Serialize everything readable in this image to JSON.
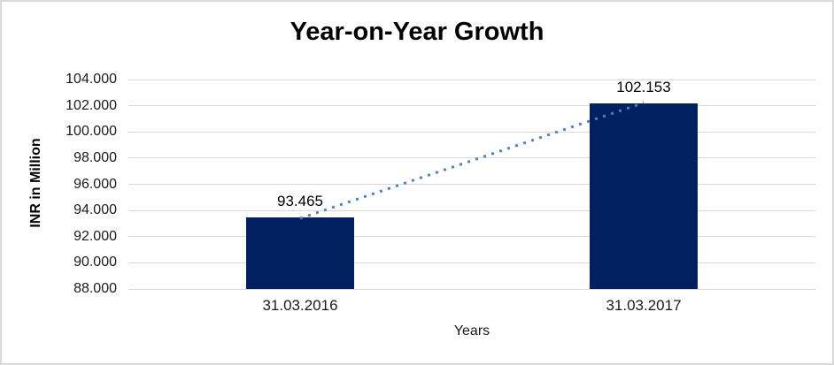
{
  "chart_data": {
    "type": "bar",
    "title": "Year-on-Year Growth",
    "xlabel": "Years",
    "ylabel": "INR in Million",
    "categories": [
      "31.03.2016",
      "31.03.2017"
    ],
    "values": [
      93465,
      102153
    ],
    "value_labels": [
      "93.465",
      "102.153"
    ],
    "ylim": [
      88000,
      104000
    ],
    "ytick_step": 2000,
    "ytick_labels": [
      "88.000",
      "90.000",
      "92.000",
      "94.000",
      "96.000",
      "98.000",
      "100.000",
      "102.000",
      "104.000"
    ],
    "grid": true,
    "legend": false,
    "number_format": "dot-as-thousands-separator",
    "colors": {
      "bar": "#002060",
      "gridline": "#d9d9d9",
      "frame_border": "#d9d9d9",
      "trendline": "#4e81bd",
      "text": "#000000",
      "tick_text": "#1a1a1a"
    },
    "trendline": {
      "type": "linear",
      "style": "dotted",
      "from_value": 93465,
      "to_value": 102153
    }
  }
}
